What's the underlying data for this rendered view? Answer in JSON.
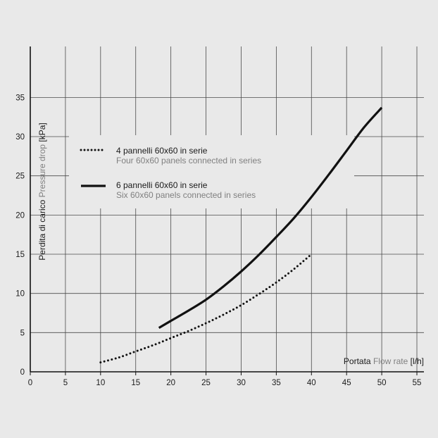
{
  "chart_data": {
    "type": "line",
    "xlabel": {
      "primary": "Portata",
      "secondary": "Flow rate",
      "unit": "[l/h]"
    },
    "ylabel": {
      "primary": "Perdita di carico",
      "secondary": "Pressure drop",
      "unit": "[kPa]"
    },
    "xlim": [
      0,
      56
    ],
    "ylim": [
      0,
      41.5
    ],
    "x_ticks": [
      0,
      5,
      10,
      15,
      20,
      25,
      30,
      35,
      40,
      45,
      50,
      55
    ],
    "y_ticks": [
      0,
      5,
      10,
      15,
      20,
      25,
      30,
      35
    ],
    "grid": true,
    "legend_position": "top-left",
    "series": [
      {
        "name": "4 pannelli 60x60 in serie",
        "name_en": "Four 60x60 panels connected in series",
        "style": "dotted",
        "color": "#111111",
        "x": [
          10,
          12.5,
          15,
          17.5,
          20,
          22.5,
          25,
          27.5,
          30,
          32.5,
          35,
          37.5,
          40
        ],
        "y": [
          1.2,
          1.8,
          2.6,
          3.4,
          4.3,
          5.2,
          6.2,
          7.3,
          8.5,
          9.9,
          11.4,
          13.1,
          15.0
        ]
      },
      {
        "name": "6 pannelli 60x60 in serie",
        "name_en": "Six 60x60 panels connected in series",
        "style": "solid",
        "color": "#111111",
        "x": [
          18.3,
          20,
          22.5,
          25,
          27.5,
          30,
          32.5,
          35,
          37.5,
          40,
          42.5,
          45,
          47.5,
          50
        ],
        "y": [
          5.6,
          6.5,
          7.8,
          9.2,
          10.9,
          12.8,
          14.9,
          17.2,
          19.6,
          22.3,
          25.2,
          28.2,
          31.2,
          33.7
        ]
      }
    ]
  }
}
